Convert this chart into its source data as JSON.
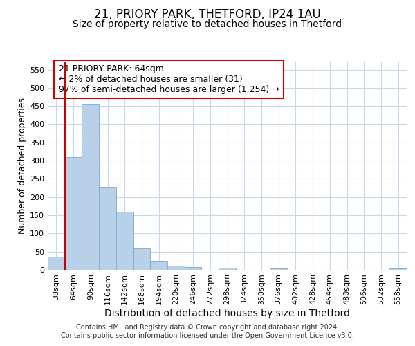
{
  "title1": "21, PRIORY PARK, THETFORD, IP24 1AU",
  "title2": "Size of property relative to detached houses in Thetford",
  "xlabel": "Distribution of detached houses by size in Thetford",
  "ylabel": "Number of detached properties",
  "categories": [
    "38sqm",
    "64sqm",
    "90sqm",
    "116sqm",
    "142sqm",
    "168sqm",
    "194sqm",
    "220sqm",
    "246sqm",
    "272sqm",
    "298sqm",
    "324sqm",
    "350sqm",
    "376sqm",
    "402sqm",
    "428sqm",
    "454sqm",
    "480sqm",
    "506sqm",
    "532sqm",
    "558sqm"
  ],
  "values": [
    37,
    310,
    455,
    228,
    160,
    58,
    25,
    11,
    8,
    0,
    5,
    0,
    0,
    4,
    0,
    0,
    0,
    0,
    0,
    0,
    4
  ],
  "bar_color": "#b8d0e8",
  "bar_edge_color": "#7aaac8",
  "highlight_index": 1,
  "highlight_line_color": "#cc0000",
  "ylim": [
    0,
    570
  ],
  "yticks": [
    0,
    50,
    100,
    150,
    200,
    250,
    300,
    350,
    400,
    450,
    500,
    550
  ],
  "grid_color": "#c8d8e8",
  "annotation_text": "21 PRIORY PARK: 64sqm\n← 2% of detached houses are smaller (31)\n97% of semi-detached houses are larger (1,254) →",
  "annotation_box_color": "#ffffff",
  "annotation_box_edge": "#cc0000",
  "footer1": "Contains HM Land Registry data © Crown copyright and database right 2024.",
  "footer2": "Contains public sector information licensed under the Open Government Licence v3.0.",
  "title1_fontsize": 12,
  "title2_fontsize": 10,
  "xlabel_fontsize": 10,
  "ylabel_fontsize": 9,
  "tick_fontsize": 8,
  "annotation_fontsize": 9,
  "footer_fontsize": 7
}
